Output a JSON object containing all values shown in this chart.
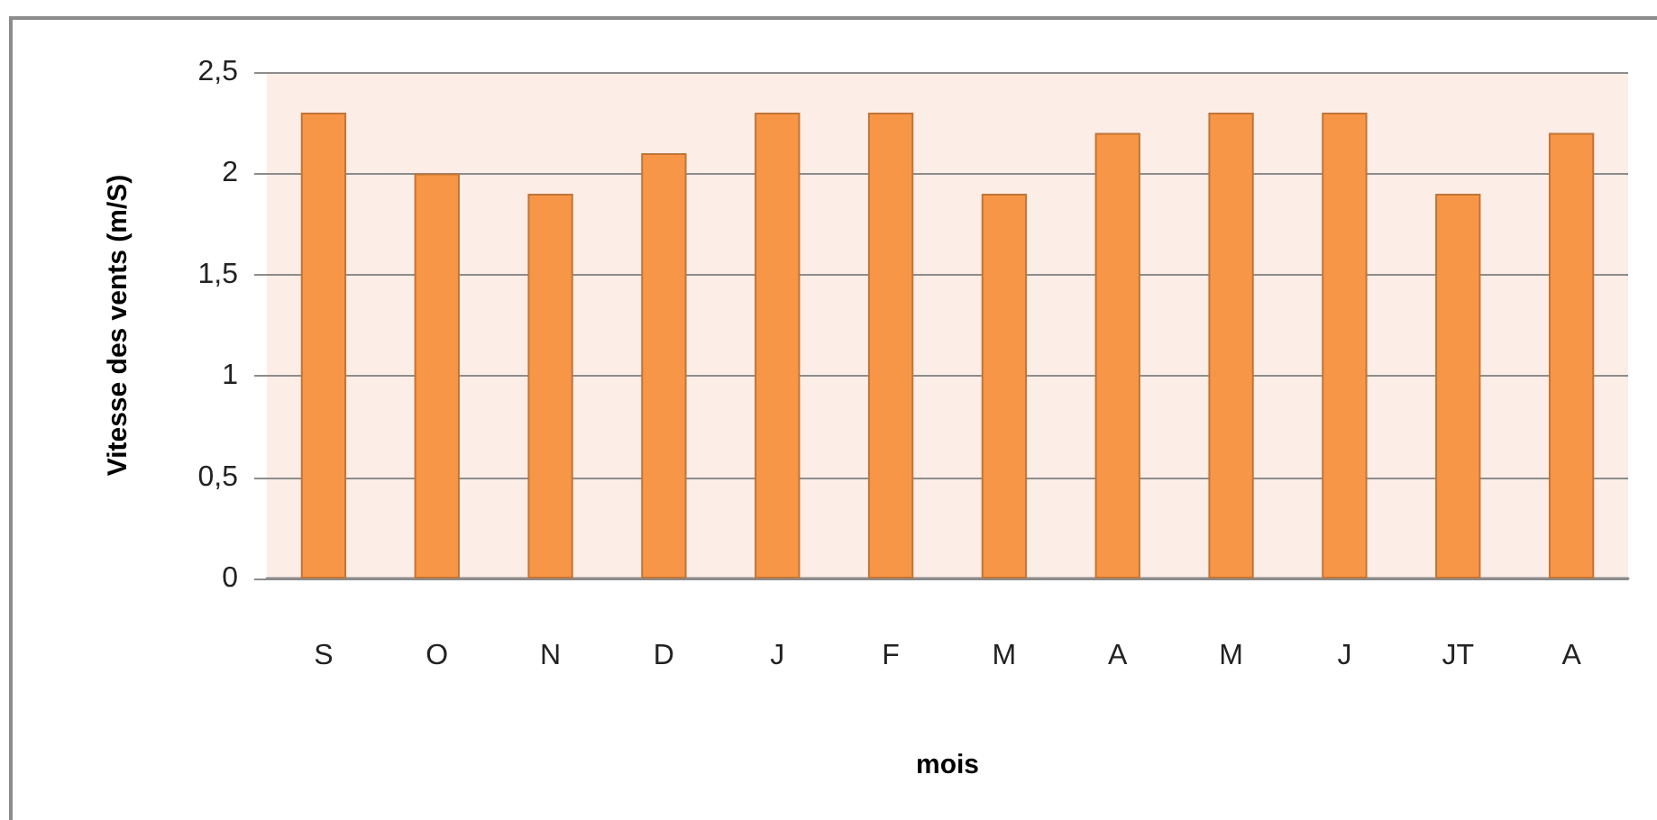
{
  "chart_data": {
    "type": "bar",
    "xlabel": "mois",
    "ylabel": "Vitesse des vents (m/S)",
    "categories": [
      "S",
      "O",
      "N",
      "D",
      "J",
      "F",
      "M",
      "A",
      "M",
      "J",
      "JT",
      "A"
    ],
    "values": [
      2.3,
      2.0,
      1.9,
      2.1,
      2.3,
      2.3,
      1.9,
      2.2,
      2.3,
      2.3,
      1.9,
      2.2
    ],
    "color": "#f79646",
    "ylim": [
      0,
      2.5
    ],
    "yticks": [
      0,
      {
        "value": 0.5,
        "label": "0,5"
      },
      1,
      {
        "value": 1.5,
        "label": "1,5"
      },
      2,
      {
        "value": 2.5,
        "label": "2,5"
      }
    ],
    "grid": "y"
  }
}
